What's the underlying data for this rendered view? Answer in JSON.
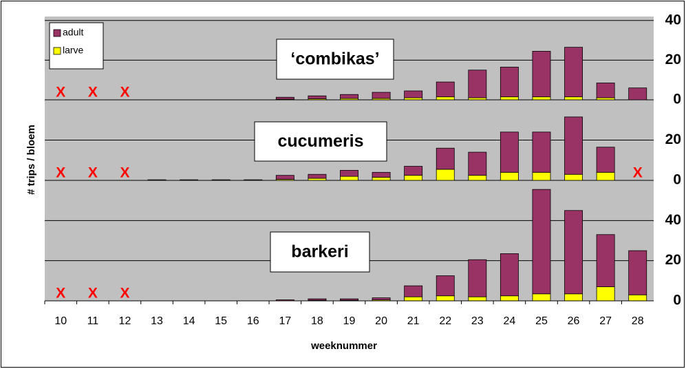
{
  "chart_data": {
    "type": "bar",
    "stacked": true,
    "ylabel": "# trips / bloem",
    "xlabel": "weeknummer",
    "categories": [
      "10",
      "11",
      "12",
      "13",
      "14",
      "15",
      "16",
      "17",
      "18",
      "19",
      "20",
      "21",
      "22",
      "23",
      "24",
      "25",
      "26",
      "27",
      "28"
    ],
    "legend": "top-left",
    "panels": [
      {
        "title": "‘combikas’",
        "ylim": [
          0,
          42
        ],
        "yticks": [
          0,
          20,
          40
        ],
        "series": [
          {
            "name": "adult",
            "color": "#993366",
            "values": [
              null,
              null,
              null,
              null,
              null,
              null,
              null,
              1.0,
              1.5,
              2.0,
              3.1,
              3.5,
              7.5,
              14,
              15,
              23,
              25,
              7.5,
              6
            ]
          },
          {
            "name": "larve",
            "color": "#ffff00",
            "values": [
              null,
              null,
              null,
              null,
              null,
              null,
              null,
              0.3,
              0.5,
              0.7,
              0.7,
              1,
              1.5,
              1,
              1.5,
              1.5,
              1.5,
              1,
              0
            ]
          }
        ],
        "annotations": [
          {
            "text": "X",
            "category": "10"
          },
          {
            "text": "X",
            "category": "11"
          },
          {
            "text": "X",
            "category": "12"
          }
        ]
      },
      {
        "title": "cucumeris",
        "ylim": [
          0,
          40
        ],
        "yticks": [
          0,
          20
        ],
        "series": [
          {
            "name": "adult",
            "color": "#993366",
            "values": [
              null,
              null,
              null,
              0.3,
              0.3,
              0.3,
              0.3,
              2,
              2,
              3,
              2.5,
              4.5,
              10.5,
              11.5,
              20,
              20,
              28.5,
              12.5,
              null
            ]
          },
          {
            "name": "larve",
            "color": "#ffff00",
            "values": [
              null,
              null,
              null,
              0,
              0,
              0,
              0,
              0.5,
              1,
              2,
              1.5,
              2.5,
              5.5,
              2.5,
              4,
              4,
              3,
              4,
              null
            ]
          }
        ],
        "annotations": [
          {
            "text": "X",
            "category": "10"
          },
          {
            "text": "X",
            "category": "11"
          },
          {
            "text": "X",
            "category": "12"
          },
          {
            "text": "X",
            "category": "28"
          }
        ]
      },
      {
        "title": "barkeri",
        "ylim": [
          0,
          60
        ],
        "yticks": [
          0,
          20,
          40
        ],
        "series": [
          {
            "name": "adult",
            "color": "#993366",
            "values": [
              null,
              null,
              null,
              null,
              null,
              null,
              null,
              0.5,
              0.7,
              0.7,
              1,
              5.5,
              10,
              18.5,
              21,
              52,
              41.5,
              26,
              22
            ]
          },
          {
            "name": "larve",
            "color": "#ffff00",
            "values": [
              null,
              null,
              null,
              null,
              null,
              null,
              null,
              0,
              0.3,
              0.3,
              0.5,
              2,
              2.5,
              2,
              2.5,
              3.5,
              3.5,
              7,
              3
            ]
          }
        ],
        "annotations": [
          {
            "text": "X",
            "category": "10"
          },
          {
            "text": "X",
            "category": "11"
          },
          {
            "text": "X",
            "category": "12"
          }
        ]
      }
    ]
  }
}
